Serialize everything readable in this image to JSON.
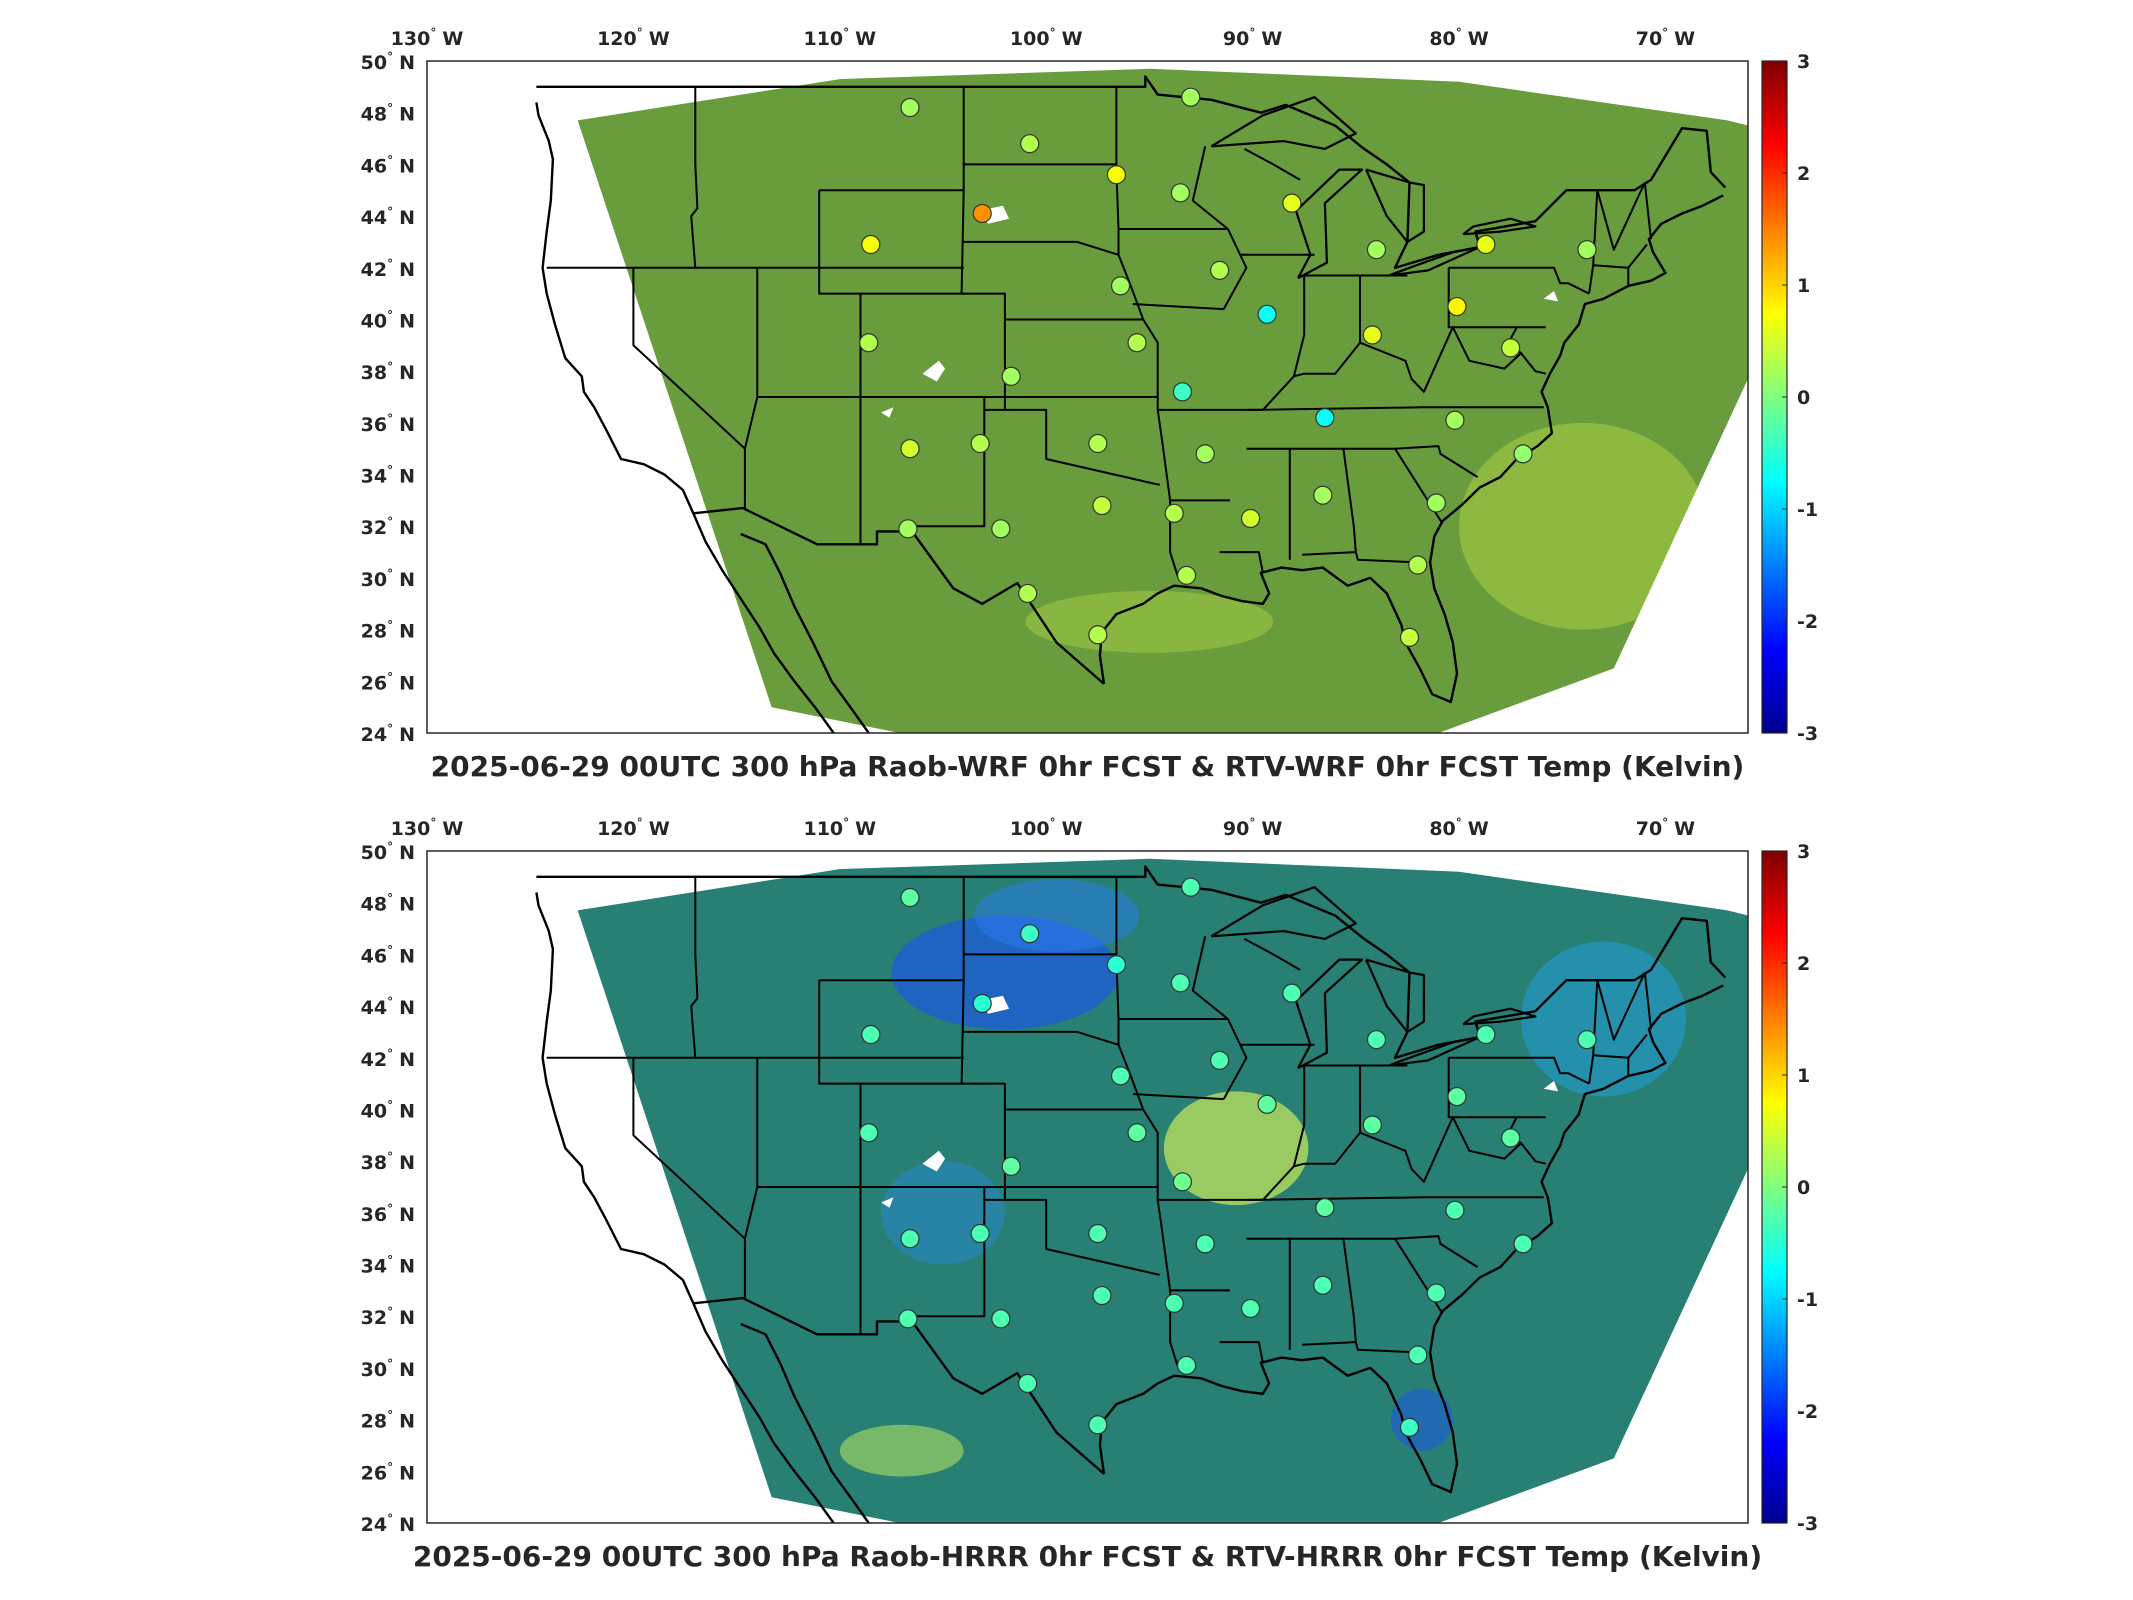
{
  "panels": [
    {
      "title": "2025-06-29 00UTC 300 hPa Raob-WRF 0hr FCST & RTV-WRF 0hr FCST Temp (Kelvin)",
      "field_tone": "mostly slightly positive (green-yellow)",
      "stations": [
        {
          "lon": -106.6,
          "lat": 48.2,
          "value": 0.2
        },
        {
          "lon": -100.8,
          "lat": 46.8,
          "value": 0.3
        },
        {
          "lon": -93.0,
          "lat": 48.6,
          "value": 0.2
        },
        {
          "lon": -96.6,
          "lat": 45.6,
          "value": 0.7
        },
        {
          "lon": -93.5,
          "lat": 44.9,
          "value": 0.2
        },
        {
          "lon": -88.1,
          "lat": 44.5,
          "value": 0.6
        },
        {
          "lon": -108.5,
          "lat": 42.9,
          "value": 0.7
        },
        {
          "lon": -103.1,
          "lat": 44.1,
          "value": 1.4
        },
        {
          "lon": -91.6,
          "lat": 41.9,
          "value": 0.3
        },
        {
          "lon": -96.4,
          "lat": 41.3,
          "value": 0.2
        },
        {
          "lon": -84.0,
          "lat": 42.7,
          "value": 0.2
        },
        {
          "lon": -78.7,
          "lat": 42.9,
          "value": 0.6
        },
        {
          "lon": -73.8,
          "lat": 42.7,
          "value": 0.2
        },
        {
          "lon": -89.3,
          "lat": 40.2,
          "value": -0.7
        },
        {
          "lon": -80.1,
          "lat": 40.5,
          "value": 0.8
        },
        {
          "lon": -84.2,
          "lat": 39.4,
          "value": 0.6
        },
        {
          "lon": -77.5,
          "lat": 38.9,
          "value": 0.4
        },
        {
          "lon": -108.6,
          "lat": 39.1,
          "value": 0.3
        },
        {
          "lon": -95.6,
          "lat": 39.1,
          "value": 0.3
        },
        {
          "lon": -101.7,
          "lat": 37.8,
          "value": 0.2
        },
        {
          "lon": -93.4,
          "lat": 37.2,
          "value": -0.4
        },
        {
          "lon": -86.5,
          "lat": 36.2,
          "value": -0.7
        },
        {
          "lon": -80.2,
          "lat": 36.1,
          "value": 0.2
        },
        {
          "lon": -106.6,
          "lat": 35.0,
          "value": 0.5
        },
        {
          "lon": -103.2,
          "lat": 35.2,
          "value": 0.3
        },
        {
          "lon": -97.5,
          "lat": 35.2,
          "value": 0.3
        },
        {
          "lon": -92.3,
          "lat": 34.8,
          "value": 0.2
        },
        {
          "lon": -76.9,
          "lat": 34.8,
          "value": 0.1
        },
        {
          "lon": -86.6,
          "lat": 33.2,
          "value": 0.2
        },
        {
          "lon": -81.1,
          "lat": 32.9,
          "value": 0.2
        },
        {
          "lon": -97.3,
          "lat": 32.8,
          "value": 0.4
        },
        {
          "lon": -93.8,
          "lat": 32.5,
          "value": 0.3
        },
        {
          "lon": -90.1,
          "lat": 32.3,
          "value": 0.5
        },
        {
          "lon": -106.7,
          "lat": 31.9,
          "value": 0.2
        },
        {
          "lon": -102.2,
          "lat": 31.9,
          "value": 0.2
        },
        {
          "lon": -93.2,
          "lat": 30.1,
          "value": 0.3
        },
        {
          "lon": -82.0,
          "lat": 30.5,
          "value": 0.3
        },
        {
          "lon": -100.9,
          "lat": 29.4,
          "value": 0.3
        },
        {
          "lon": -97.5,
          "lat": 27.8,
          "value": 0.3
        },
        {
          "lon": -82.4,
          "lat": 27.7,
          "value": 0.4
        }
      ]
    },
    {
      "title": "2025-06-29 00UTC 300 hPa Raob-HRRR 0hr FCST & RTV-HRRR 0hr FCST Temp (Kelvin)",
      "field_tone": "mostly slightly negative (cyan-blue)",
      "stations": [
        {
          "lon": -106.6,
          "lat": 48.2,
          "value": -0.2
        },
        {
          "lon": -100.8,
          "lat": 46.8,
          "value": -0.4
        },
        {
          "lon": -93.0,
          "lat": 48.6,
          "value": -0.3
        },
        {
          "lon": -96.6,
          "lat": 45.6,
          "value": -0.5
        },
        {
          "lon": -93.5,
          "lat": 44.9,
          "value": -0.3
        },
        {
          "lon": -88.1,
          "lat": 44.5,
          "value": -0.3
        },
        {
          "lon": -108.5,
          "lat": 42.9,
          "value": -0.3
        },
        {
          "lon": -103.1,
          "lat": 44.1,
          "value": -0.5
        },
        {
          "lon": -91.6,
          "lat": 41.9,
          "value": -0.3
        },
        {
          "lon": -96.4,
          "lat": 41.3,
          "value": -0.3
        },
        {
          "lon": -84.0,
          "lat": 42.7,
          "value": -0.3
        },
        {
          "lon": -78.7,
          "lat": 42.9,
          "value": -0.3
        },
        {
          "lon": -73.8,
          "lat": 42.7,
          "value": -0.3
        },
        {
          "lon": -89.3,
          "lat": 40.2,
          "value": -0.2
        },
        {
          "lon": -80.1,
          "lat": 40.5,
          "value": -0.2
        },
        {
          "lon": -84.2,
          "lat": 39.4,
          "value": -0.2
        },
        {
          "lon": -77.5,
          "lat": 38.9,
          "value": -0.2
        },
        {
          "lon": -108.6,
          "lat": 39.1,
          "value": -0.3
        },
        {
          "lon": -95.6,
          "lat": 39.1,
          "value": -0.2
        },
        {
          "lon": -101.7,
          "lat": 37.8,
          "value": -0.2
        },
        {
          "lon": -93.4,
          "lat": 37.2,
          "value": -0.1
        },
        {
          "lon": -86.5,
          "lat": 36.2,
          "value": -0.2
        },
        {
          "lon": -80.2,
          "lat": 36.1,
          "value": -0.3
        },
        {
          "lon": -106.6,
          "lat": 35.0,
          "value": -0.3
        },
        {
          "lon": -103.2,
          "lat": 35.2,
          "value": -0.3
        },
        {
          "lon": -97.5,
          "lat": 35.2,
          "value": -0.3
        },
        {
          "lon": -92.3,
          "lat": 34.8,
          "value": -0.3
        },
        {
          "lon": -76.9,
          "lat": 34.8,
          "value": -0.3
        },
        {
          "lon": -86.6,
          "lat": 33.2,
          "value": -0.3
        },
        {
          "lon": -81.1,
          "lat": 32.9,
          "value": -0.3
        },
        {
          "lon": -97.3,
          "lat": 32.8,
          "value": -0.3
        },
        {
          "lon": -93.8,
          "lat": 32.5,
          "value": -0.3
        },
        {
          "lon": -90.1,
          "lat": 32.3,
          "value": -0.3
        },
        {
          "lon": -106.7,
          "lat": 31.9,
          "value": -0.3
        },
        {
          "lon": -102.2,
          "lat": 31.9,
          "value": -0.3
        },
        {
          "lon": -93.2,
          "lat": 30.1,
          "value": -0.3
        },
        {
          "lon": -82.0,
          "lat": 30.5,
          "value": -0.3
        },
        {
          "lon": -100.9,
          "lat": 29.4,
          "value": -0.3
        },
        {
          "lon": -97.5,
          "lat": 27.8,
          "value": -0.3
        },
        {
          "lon": -82.4,
          "lat": 27.7,
          "value": -0.4
        }
      ]
    }
  ],
  "lon_ticks": [
    {
      "value": -130,
      "num": "130",
      "hemi": "W"
    },
    {
      "value": -120,
      "num": "120",
      "hemi": "W"
    },
    {
      "value": -110,
      "num": "110",
      "hemi": "W"
    },
    {
      "value": -100,
      "num": "100",
      "hemi": "W"
    },
    {
      "value": -90,
      "num": "90",
      "hemi": "W"
    },
    {
      "value": -80,
      "num": "80",
      "hemi": "W"
    },
    {
      "value": -70,
      "num": "70",
      "hemi": "W"
    }
  ],
  "lat_ticks": [
    {
      "value": 50,
      "num": "50",
      "hemi": "N"
    },
    {
      "value": 48,
      "num": "48",
      "hemi": "N"
    },
    {
      "value": 46,
      "num": "46",
      "hemi": "N"
    },
    {
      "value": 44,
      "num": "44",
      "hemi": "N"
    },
    {
      "value": 42,
      "num": "42",
      "hemi": "N"
    },
    {
      "value": 40,
      "num": "40",
      "hemi": "N"
    },
    {
      "value": 38,
      "num": "38",
      "hemi": "N"
    },
    {
      "value": 36,
      "num": "36",
      "hemi": "N"
    },
    {
      "value": 34,
      "num": "34",
      "hemi": "N"
    },
    {
      "value": 32,
      "num": "32",
      "hemi": "N"
    },
    {
      "value": 30,
      "num": "30",
      "hemi": "N"
    },
    {
      "value": 28,
      "num": "28",
      "hemi": "N"
    },
    {
      "value": 26,
      "num": "26",
      "hemi": "N"
    },
    {
      "value": 24,
      "num": "24",
      "hemi": "N"
    }
  ],
  "colorbar": {
    "min": -3,
    "max": 3,
    "ticks": [
      {
        "value": 3,
        "label": "3"
      },
      {
        "value": 2,
        "label": "2"
      },
      {
        "value": 1,
        "label": "1"
      },
      {
        "value": 0,
        "label": "0"
      },
      {
        "value": -1,
        "label": "-1"
      },
      {
        "value": -2,
        "label": "-2"
      },
      {
        "value": -3,
        "label": "-3"
      }
    ],
    "colormap": "jet"
  },
  "map_extent": {
    "lon_min": -130,
    "lon_max": -66,
    "lat_min": 24,
    "lat_max": 50
  },
  "colors": {
    "frame": "#262626",
    "background": "#ffffff",
    "boundaries": "#000000"
  }
}
